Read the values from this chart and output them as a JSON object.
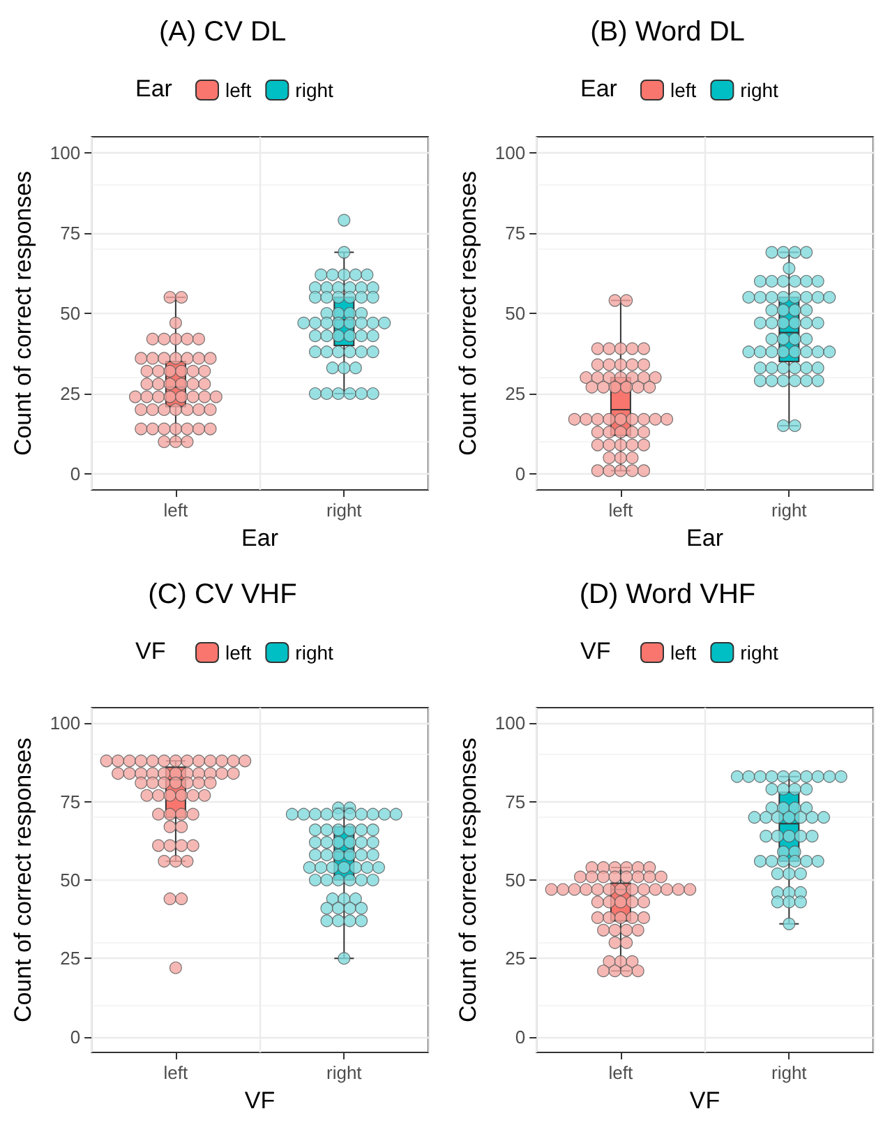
{
  "chart_data": [
    {
      "type": "box",
      "title": "(A) CV DL",
      "xlabel": "Ear",
      "ylabel": "Count of correct responses",
      "legend_title": "Ear",
      "categories": [
        "left",
        "right"
      ],
      "ylim": [
        -5,
        105
      ],
      "yticks": [
        0,
        25,
        50,
        75,
        100
      ],
      "grid": true,
      "legend": "top",
      "series": [
        {
          "name": "left",
          "color": "#f8766d",
          "boxes": [
            {
              "low": 10,
              "q1": 21,
              "median": 27,
              "q3": 35,
              "high": 55
            },
            null
          ]
        },
        {
          "name": "right",
          "color": "#00bfc4",
          "boxes": [
            null,
            {
              "low": 25,
              "q1": 40,
              "median": 48,
              "q3": 55,
              "high": 69
            }
          ]
        },
        {
          "type": "scatter",
          "color": "#f4a6a1",
          "x": [
            "left",
            "left",
            "left",
            "left",
            "left",
            "left",
            "left",
            "left",
            "left",
            "left",
            "left",
            "left",
            "left",
            "left",
            "left",
            "left",
            "left",
            "left",
            "left",
            "left",
            "left",
            "left",
            "left",
            "left",
            "left",
            "left",
            "left",
            "left",
            "left",
            "left",
            "left",
            "left",
            "left",
            "left",
            "left",
            "left",
            "left",
            "left",
            "left",
            "left",
            "left",
            "left",
            "left",
            "left",
            "left",
            "left",
            "left",
            "left",
            "left",
            "left",
            "left",
            "left"
          ],
          "values": [
            55,
            55,
            47,
            42,
            42,
            42,
            42,
            42,
            36,
            36,
            36,
            36,
            36,
            36,
            36,
            32,
            32,
            32,
            32,
            32,
            32,
            28,
            28,
            28,
            28,
            28,
            28,
            24,
            24,
            24,
            24,
            24,
            24,
            24,
            24,
            20,
            20,
            20,
            20,
            20,
            20,
            20,
            14,
            14,
            14,
            14,
            14,
            14,
            14,
            10,
            10,
            10
          ]
        },
        {
          "type": "scatter",
          "color": "#7fd9dc",
          "x": [
            "right",
            "right",
            "right",
            "right",
            "right",
            "right",
            "right",
            "right",
            "right",
            "right",
            "right",
            "right",
            "right",
            "right",
            "right",
            "right",
            "right",
            "right",
            "right",
            "right",
            "right",
            "right",
            "right",
            "right",
            "right",
            "right",
            "right",
            "right",
            "right",
            "right",
            "right",
            "right",
            "right",
            "right",
            "right",
            "right",
            "right",
            "right",
            "right",
            "right",
            "right",
            "right",
            "right",
            "right",
            "right",
            "right",
            "right",
            "right",
            "right",
            "right",
            "right",
            "right"
          ],
          "values": [
            79,
            69,
            62,
            62,
            62,
            62,
            62,
            58,
            58,
            58,
            58,
            58,
            58,
            55,
            55,
            55,
            55,
            55,
            55,
            50,
            50,
            50,
            50,
            47,
            47,
            47,
            47,
            47,
            47,
            47,
            47,
            43,
            43,
            43,
            43,
            43,
            43,
            38,
            38,
            38,
            38,
            38,
            38,
            33,
            33,
            33,
            25,
            25,
            25,
            25,
            25,
            25
          ]
        }
      ]
    },
    {
      "type": "box",
      "title": "(B) Word DL",
      "xlabel": "Ear",
      "ylabel": "Count of correct responses",
      "legend_title": "Ear",
      "categories": [
        "left",
        "right"
      ],
      "ylim": [
        -5,
        105
      ],
      "yticks": [
        0,
        25,
        50,
        75,
        100
      ],
      "grid": true,
      "legend": "top",
      "series": [
        {
          "name": "left",
          "color": "#f8766d",
          "boxes": [
            {
              "low": 1,
              "q1": 12,
              "median": 20,
              "q3": 30,
              "high": 54
            },
            null
          ]
        },
        {
          "name": "right",
          "color": "#00bfc4",
          "boxes": [
            null,
            {
              "low": 15,
              "q1": 35,
              "median": 44,
              "q3": 55,
              "high": 69
            }
          ]
        },
        {
          "type": "scatter",
          "color": "#f4a6a1",
          "x": [
            "left",
            "left",
            "left",
            "left",
            "left",
            "left",
            "left",
            "left",
            "left",
            "left",
            "left",
            "left",
            "left",
            "left",
            "left",
            "left",
            "left",
            "left",
            "left",
            "left",
            "left",
            "left",
            "left",
            "left",
            "left",
            "left",
            "left",
            "left",
            "left",
            "left",
            "left",
            "left",
            "left",
            "left",
            "left",
            "left",
            "left",
            "left",
            "left",
            "left",
            "left",
            "left",
            "left",
            "left",
            "left",
            "left",
            "left",
            "left",
            "left",
            "left",
            "left",
            "left"
          ],
          "values": [
            54,
            54,
            39,
            39,
            39,
            39,
            39,
            34,
            34,
            34,
            34,
            34,
            30,
            30,
            30,
            30,
            30,
            30,
            30,
            27,
            27,
            27,
            27,
            27,
            27,
            17,
            17,
            17,
            17,
            17,
            17,
            17,
            17,
            17,
            13,
            13,
            13,
            13,
            13,
            9,
            9,
            9,
            9,
            9,
            5,
            5,
            5,
            1,
            1,
            1,
            1,
            1
          ]
        },
        {
          "type": "scatter",
          "color": "#7fd9dc",
          "x": [
            "right",
            "right",
            "right",
            "right",
            "right",
            "right",
            "right",
            "right",
            "right",
            "right",
            "right",
            "right",
            "right",
            "right",
            "right",
            "right",
            "right",
            "right",
            "right",
            "right",
            "right",
            "right",
            "right",
            "right",
            "right",
            "right",
            "right",
            "right",
            "right",
            "right",
            "right",
            "right",
            "right",
            "right",
            "right",
            "right",
            "right",
            "right",
            "right",
            "right",
            "right",
            "right",
            "right",
            "right",
            "right",
            "right",
            "right",
            "right",
            "right",
            "right",
            "right",
            "right",
            "right",
            "right",
            "right"
          ],
          "values": [
            69,
            69,
            69,
            69,
            64,
            60,
            60,
            60,
            60,
            60,
            60,
            55,
            55,
            55,
            55,
            55,
            55,
            55,
            55,
            51,
            51,
            51,
            51,
            47,
            47,
            47,
            47,
            47,
            47,
            42,
            42,
            42,
            42,
            38,
            38,
            38,
            38,
            38,
            38,
            38,
            38,
            33,
            33,
            33,
            33,
            33,
            33,
            29,
            29,
            29,
            29,
            29,
            29,
            15,
            15
          ]
        }
      ]
    },
    {
      "type": "box",
      "title": "(C) CV VHF",
      "xlabel": "VF",
      "ylabel": "Count of correct responses",
      "legend_title": "VF",
      "categories": [
        "left",
        "right"
      ],
      "ylim": [
        -5,
        105
      ],
      "yticks": [
        0,
        25,
        50,
        75,
        100
      ],
      "grid": true,
      "legend": "top",
      "series": [
        {
          "name": "left",
          "color": "#f8766d",
          "boxes": [
            {
              "low": 56,
              "q1": 70,
              "median": 82,
              "q3": 86,
              "high": 88
            },
            null
          ]
        },
        {
          "name": "right",
          "color": "#00bfc4",
          "boxes": [
            null,
            {
              "low": 25,
              "q1": 50,
              "median": 59,
              "q3": 67,
              "high": 73
            }
          ]
        },
        {
          "type": "scatter",
          "color": "#f4a6a1",
          "x": [
            "left",
            "left",
            "left",
            "left",
            "left",
            "left",
            "left",
            "left",
            "left",
            "left",
            "left",
            "left",
            "left",
            "left",
            "left",
            "left",
            "left",
            "left",
            "left",
            "left",
            "left",
            "left",
            "left",
            "left",
            "left",
            "left",
            "left",
            "left",
            "left",
            "left",
            "left",
            "left",
            "left",
            "left",
            "left",
            "left",
            "left",
            "left",
            "left",
            "left",
            "left",
            "left",
            "left",
            "left",
            "left",
            "left",
            "left",
            "left",
            "left",
            "left",
            "left",
            "left",
            "left"
          ],
          "values": [
            88,
            88,
            88,
            88,
            88,
            88,
            88,
            88,
            88,
            88,
            88,
            88,
            88,
            84,
            84,
            84,
            84,
            84,
            84,
            84,
            84,
            84,
            84,
            84,
            81,
            81,
            81,
            81,
            81,
            81,
            81,
            77,
            77,
            77,
            77,
            77,
            77,
            71,
            71,
            71,
            71,
            67,
            67,
            61,
            61,
            61,
            61,
            56,
            56,
            56,
            44,
            44,
            22
          ]
        },
        {
          "type": "scatter",
          "color": "#7fd9dc",
          "x": [
            "right",
            "right",
            "right",
            "right",
            "right",
            "right",
            "right",
            "right",
            "right",
            "right",
            "right",
            "right",
            "right",
            "right",
            "right",
            "right",
            "right",
            "right",
            "right",
            "right",
            "right",
            "right",
            "right",
            "right",
            "right",
            "right",
            "right",
            "right",
            "right",
            "right",
            "right",
            "right",
            "right",
            "right",
            "right",
            "right",
            "right",
            "right",
            "right",
            "right",
            "right",
            "right",
            "right",
            "right",
            "right",
            "right",
            "right",
            "right",
            "right",
            "right",
            "right",
            "right",
            "right",
            "right",
            "right"
          ],
          "values": [
            73,
            73,
            71,
            71,
            71,
            71,
            71,
            71,
            71,
            71,
            71,
            71,
            66,
            66,
            66,
            66,
            66,
            66,
            62,
            62,
            62,
            62,
            62,
            62,
            58,
            58,
            58,
            58,
            58,
            58,
            54,
            54,
            54,
            54,
            54,
            54,
            54,
            50,
            50,
            50,
            50,
            50,
            50,
            44,
            44,
            44,
            41,
            41,
            41,
            41,
            37,
            37,
            37,
            37,
            25
          ]
        }
      ]
    },
    {
      "type": "box",
      "title": "(D) Word VHF",
      "xlabel": "VF",
      "ylabel": "Count of correct responses",
      "legend_title": "VF",
      "categories": [
        "left",
        "right"
      ],
      "ylim": [
        -5,
        105
      ],
      "yticks": [
        0,
        25,
        50,
        75,
        100
      ],
      "grid": true,
      "legend": "top",
      "series": [
        {
          "name": "left",
          "color": "#f8766d",
          "boxes": [
            {
              "low": 21,
              "q1": 37,
              "median": 47,
              "q3": 49,
              "high": 54
            },
            null
          ]
        },
        {
          "name": "right",
          "color": "#00bfc4",
          "boxes": [
            null,
            {
              "low": 36,
              "q1": 56,
              "median": 68,
              "q3": 78,
              "high": 83
            }
          ]
        },
        {
          "type": "scatter",
          "color": "#f4a6a1",
          "x": [
            "left",
            "left",
            "left",
            "left",
            "left",
            "left",
            "left",
            "left",
            "left",
            "left",
            "left",
            "left",
            "left",
            "left",
            "left",
            "left",
            "left",
            "left",
            "left",
            "left",
            "left",
            "left",
            "left",
            "left",
            "left",
            "left",
            "left",
            "left",
            "left",
            "left",
            "left",
            "left",
            "left",
            "left",
            "left",
            "left",
            "left",
            "left",
            "left",
            "left",
            "left",
            "left",
            "left",
            "left",
            "left",
            "left",
            "left",
            "left",
            "left",
            "left"
          ],
          "values": [
            54,
            54,
            54,
            54,
            54,
            54,
            51,
            51,
            51,
            51,
            51,
            51,
            51,
            51,
            47,
            47,
            47,
            47,
            47,
            47,
            47,
            47,
            47,
            47,
            47,
            47,
            47,
            43,
            43,
            43,
            43,
            43,
            38,
            38,
            38,
            38,
            38,
            34,
            34,
            34,
            34,
            30,
            30,
            24,
            24,
            24,
            21,
            21,
            21,
            21
          ]
        },
        {
          "type": "scatter",
          "color": "#7fd9dc",
          "x": [
            "right",
            "right",
            "right",
            "right",
            "right",
            "right",
            "right",
            "right",
            "right",
            "right",
            "right",
            "right",
            "right",
            "right",
            "right",
            "right",
            "right",
            "right",
            "right",
            "right",
            "right",
            "right",
            "right",
            "right",
            "right",
            "right",
            "right",
            "right",
            "right",
            "right",
            "right",
            "right",
            "right",
            "right",
            "right",
            "right",
            "right",
            "right",
            "right",
            "right",
            "right",
            "right",
            "right",
            "right",
            "right",
            "right",
            "right",
            "right"
          ],
          "values": [
            83,
            83,
            83,
            83,
            83,
            83,
            83,
            83,
            83,
            83,
            79,
            79,
            79,
            79,
            73,
            73,
            73,
            73,
            70,
            70,
            70,
            70,
            70,
            70,
            70,
            64,
            64,
            64,
            64,
            64,
            59,
            59,
            56,
            56,
            56,
            56,
            56,
            56,
            52,
            52,
            52,
            46,
            46,
            46,
            43,
            43,
            43,
            36
          ]
        }
      ]
    }
  ]
}
